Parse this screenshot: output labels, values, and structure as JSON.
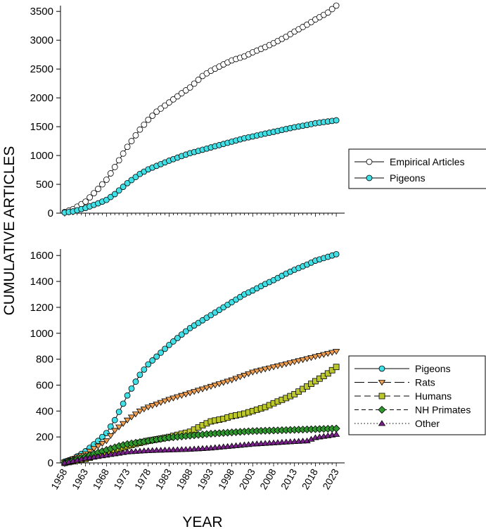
{
  "ylabel": "CUMULATIVE ARTICLES",
  "xlabel": "YEAR",
  "chart_data": [
    {
      "type": "line",
      "title": "",
      "xlim": [
        1957,
        2025
      ],
      "ylim": [
        0,
        3600
      ],
      "yticks": [
        0,
        500,
        1000,
        1500,
        2000,
        2500,
        3000,
        3500
      ],
      "grid": false,
      "legend": "right",
      "series": [
        {
          "name": "Empirical Articles",
          "marker": "circle",
          "color": "#ffffff",
          "line": "solid",
          "knots": [
            [
              1958,
              20
            ],
            [
              1960,
              70
            ],
            [
              1963,
              200
            ],
            [
              1966,
              420
            ],
            [
              1968,
              580
            ],
            [
              1970,
              800
            ],
            [
              1973,
              1150
            ],
            [
              1976,
              1450
            ],
            [
              1978,
              1620
            ],
            [
              1980,
              1760
            ],
            [
              1983,
              1920
            ],
            [
              1986,
              2080
            ],
            [
              1988,
              2180
            ],
            [
              1991,
              2380
            ],
            [
              1993,
              2470
            ],
            [
              1996,
              2580
            ],
            [
              1998,
              2650
            ],
            [
              2001,
              2720
            ],
            [
              2003,
              2790
            ],
            [
              2006,
              2880
            ],
            [
              2008,
              2950
            ],
            [
              2011,
              3060
            ],
            [
              2013,
              3150
            ],
            [
              2016,
              3270
            ],
            [
              2018,
              3360
            ],
            [
              2021,
              3480
            ],
            [
              2023,
              3600
            ]
          ]
        },
        {
          "name": "Pigeons",
          "marker": "circle",
          "color": "#3fe0e6",
          "line": "solid",
          "knots": [
            [
              1958,
              10
            ],
            [
              1960,
              30
            ],
            [
              1963,
              90
            ],
            [
              1966,
              170
            ],
            [
              1968,
              230
            ],
            [
              1970,
              330
            ],
            [
              1973,
              520
            ],
            [
              1976,
              680
            ],
            [
              1978,
              760
            ],
            [
              1981,
              850
            ],
            [
              1983,
              910
            ],
            [
              1986,
              990
            ],
            [
              1988,
              1040
            ],
            [
              1991,
              1100
            ],
            [
              1993,
              1140
            ],
            [
              1996,
              1200
            ],
            [
              1998,
              1240
            ],
            [
              2001,
              1300
            ],
            [
              2003,
              1330
            ],
            [
              2006,
              1380
            ],
            [
              2008,
              1410
            ],
            [
              2011,
              1460
            ],
            [
              2013,
              1490
            ],
            [
              2016,
              1530
            ],
            [
              2018,
              1560
            ],
            [
              2021,
              1590
            ],
            [
              2023,
              1610
            ]
          ]
        }
      ]
    },
    {
      "type": "line",
      "title": "",
      "xlim": [
        1957,
        2025
      ],
      "ylim": [
        0,
        1650
      ],
      "yticks": [
        0,
        200,
        400,
        600,
        800,
        1000,
        1200,
        1400,
        1600
      ],
      "xticks": [
        1958,
        1963,
        1968,
        1973,
        1978,
        1983,
        1988,
        1993,
        1998,
        2003,
        2008,
        2013,
        2018,
        2023
      ],
      "grid": false,
      "legend": "right",
      "series": [
        {
          "name": "Pigeons",
          "marker": "circle",
          "color": "#3fe0e6",
          "line": "solid",
          "knots": [
            [
              1958,
              10
            ],
            [
              1960,
              30
            ],
            [
              1963,
              90
            ],
            [
              1966,
              170
            ],
            [
              1968,
              230
            ],
            [
              1970,
              330
            ],
            [
              1973,
              520
            ],
            [
              1976,
              680
            ],
            [
              1978,
              760
            ],
            [
              1981,
              850
            ],
            [
              1983,
              910
            ],
            [
              1986,
              990
            ],
            [
              1988,
              1040
            ],
            [
              1991,
              1100
            ],
            [
              1993,
              1140
            ],
            [
              1996,
              1200
            ],
            [
              1998,
              1240
            ],
            [
              2001,
              1300
            ],
            [
              2003,
              1330
            ],
            [
              2006,
              1380
            ],
            [
              2008,
              1410
            ],
            [
              2011,
              1460
            ],
            [
              2013,
              1490
            ],
            [
              2016,
              1530
            ],
            [
              2018,
              1560
            ],
            [
              2021,
              1590
            ],
            [
              2023,
              1610
            ]
          ]
        },
        {
          "name": "Rats",
          "marker": "triangle-down",
          "color": "#f0a050",
          "line": "longdash",
          "knots": [
            [
              1958,
              5
            ],
            [
              1963,
              70
            ],
            [
              1966,
              130
            ],
            [
              1968,
              170
            ],
            [
              1970,
              250
            ],
            [
              1973,
              330
            ],
            [
              1976,
              400
            ],
            [
              1978,
              430
            ],
            [
              1983,
              490
            ],
            [
              1988,
              540
            ],
            [
              1993,
              590
            ],
            [
              1998,
              640
            ],
            [
              2003,
              700
            ],
            [
              2008,
              740
            ],
            [
              2013,
              780
            ],
            [
              2018,
              820
            ],
            [
              2023,
              860
            ]
          ]
        },
        {
          "name": "Humans",
          "marker": "square",
          "color": "#bcc82a",
          "line": "dash",
          "knots": [
            [
              1958,
              0
            ],
            [
              1963,
              30
            ],
            [
              1968,
              80
            ],
            [
              1973,
              130
            ],
            [
              1978,
              170
            ],
            [
              1983,
              200
            ],
            [
              1988,
              240
            ],
            [
              1991,
              290
            ],
            [
              1993,
              320
            ],
            [
              1996,
              340
            ],
            [
              1998,
              360
            ],
            [
              2001,
              380
            ],
            [
              2003,
              400
            ],
            [
              2006,
              430
            ],
            [
              2008,
              460
            ],
            [
              2011,
              500
            ],
            [
              2013,
              530
            ],
            [
              2016,
              590
            ],
            [
              2018,
              630
            ],
            [
              2021,
              690
            ],
            [
              2023,
              740
            ]
          ]
        },
        {
          "name": "NH Primates",
          "marker": "diamond",
          "color": "#2e9a2e",
          "line": "shortdash",
          "knots": [
            [
              1958,
              0
            ],
            [
              1961,
              30
            ],
            [
              1963,
              50
            ],
            [
              1966,
              80
            ],
            [
              1968,
              100
            ],
            [
              1971,
              130
            ],
            [
              1973,
              145
            ],
            [
              1976,
              160
            ],
            [
              1978,
              170
            ],
            [
              1983,
              195
            ],
            [
              1988,
              210
            ],
            [
              1993,
              225
            ],
            [
              1998,
              235
            ],
            [
              2003,
              245
            ],
            [
              2008,
              250
            ],
            [
              2013,
              255
            ],
            [
              2018,
              260
            ],
            [
              2023,
              265
            ]
          ]
        },
        {
          "name": "Other",
          "marker": "triangle-up",
          "color": "#7a1f8c",
          "line": "dot",
          "knots": [
            [
              1958,
              0
            ],
            [
              1963,
              35
            ],
            [
              1968,
              60
            ],
            [
              1973,
              85
            ],
            [
              1978,
              95
            ],
            [
              1983,
              100
            ],
            [
              1988,
              105
            ],
            [
              1993,
              115
            ],
            [
              1998,
              130
            ],
            [
              2003,
              145
            ],
            [
              2008,
              155
            ],
            [
              2013,
              165
            ],
            [
              2016,
              170
            ],
            [
              2018,
              195
            ],
            [
              2023,
              220
            ]
          ]
        }
      ]
    }
  ]
}
